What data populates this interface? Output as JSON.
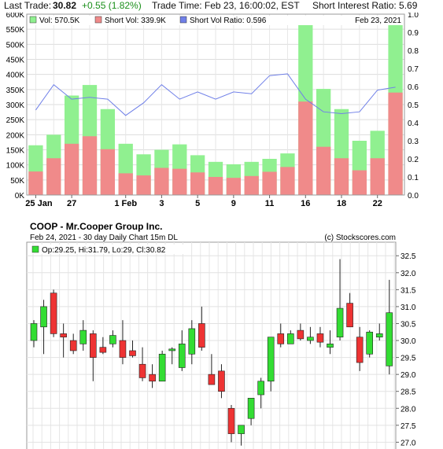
{
  "header": {
    "last_trade_label": "Last Trade:",
    "last_trade_price": "30.82",
    "change": "+0.55 (1.82%)",
    "trade_time": "Trade Time: Feb 23, 16:00:02, EST",
    "short_interest": "Short Interest Ratio: 5.69"
  },
  "colors": {
    "volume": "#90f090",
    "short_volume": "#f08a8a",
    "ratio_line": "#7080e8",
    "candle_up": "#33dd33",
    "candle_down": "#ee3333"
  },
  "chart_data": [
    {
      "type": "bar",
      "legend": {
        "vol": "Vol: 570.5K",
        "short_vol": "Short Vol: 339.9K",
        "ratio": "Short Vol Ratio: 0.596",
        "date": "Feb 23, 2021"
      },
      "x_tick_labels": [
        "25 Jan",
        "27",
        "1 Feb",
        "3",
        "5",
        "9",
        "11",
        "16",
        "18",
        "22"
      ],
      "y_left_ticks": [
        "0K",
        "50K",
        "100K",
        "150K",
        "200K",
        "250K",
        "300K",
        "350K",
        "400K",
        "450K",
        "500K",
        "550K",
        "600K"
      ],
      "y_right_ticks": [
        "0.0",
        "0.1",
        "0.2",
        "0.3",
        "0.4",
        "0.5",
        "0.6",
        "0.7",
        "0.8",
        "0.9",
        "1.0"
      ],
      "ylim_left": [
        0,
        600000
      ],
      "ylim_right": [
        0,
        1.0
      ],
      "categories": [
        "Jan 25",
        "Jan 26",
        "Jan 27",
        "Jan 28",
        "Jan 29",
        "Feb 1",
        "Feb 2",
        "Feb 3",
        "Feb 4",
        "Feb 5",
        "Feb 8",
        "Feb 9",
        "Feb 10",
        "Feb 11",
        "Feb 12",
        "Feb 16",
        "Feb 17",
        "Feb 18",
        "Feb 19",
        "Feb 22",
        "Feb 23"
      ],
      "tick_index": [
        0,
        2,
        5,
        7,
        9,
        11,
        13,
        15,
        17,
        19
      ],
      "volume": [
        165000,
        200000,
        330000,
        365000,
        285000,
        170000,
        135000,
        150000,
        168000,
        132000,
        110000,
        102000,
        110000,
        120000,
        138000,
        575000,
        352000,
        285000,
        180000,
        213000,
        570500
      ],
      "short_volume": [
        78000,
        122000,
        170000,
        195000,
        152000,
        72000,
        65000,
        90000,
        87000,
        75000,
        60000,
        57000,
        63000,
        77000,
        93000,
        310000,
        160000,
        122000,
        82000,
        122000,
        339900
      ],
      "short_ratio": [
        0.47,
        0.61,
        0.53,
        0.54,
        0.53,
        0.44,
        0.51,
        0.61,
        0.53,
        0.57,
        0.53,
        0.57,
        0.56,
        0.66,
        0.67,
        0.53,
        0.46,
        0.45,
        0.46,
        0.58,
        0.596
      ]
    },
    {
      "type": "candlestick",
      "title": "COOP - Mr.Cooper Group Inc.",
      "subtitle": "Feb 24, 2021 - 30 day  Daily Chart 15m DL",
      "credit": "(c) Stockscores.com",
      "legend": "Op:29.25, Hi:31.79, Lo:29, Cl:30.82",
      "y_ticks": [
        "27.0",
        "27.5",
        "28.0",
        "28.5",
        "29.0",
        "29.5",
        "30.0",
        "30.5",
        "31.0",
        "31.5",
        "32.0",
        "32.5"
      ],
      "ylim": [
        26.8,
        32.9
      ],
      "candles": [
        {
          "o": 30.0,
          "h": 30.6,
          "l": 29.8,
          "c": 30.5
        },
        {
          "o": 30.4,
          "h": 31.2,
          "l": 29.6,
          "c": 31.0
        },
        {
          "o": 31.4,
          "h": 31.5,
          "l": 30.1,
          "c": 30.2
        },
        {
          "o": 30.2,
          "h": 30.5,
          "l": 29.5,
          "c": 30.1
        },
        {
          "o": 30.0,
          "h": 30.2,
          "l": 29.6,
          "c": 29.7
        },
        {
          "o": 29.9,
          "h": 30.6,
          "l": 29.7,
          "c": 30.3
        },
        {
          "o": 30.2,
          "h": 30.3,
          "l": 28.8,
          "c": 29.5
        },
        {
          "o": 29.8,
          "h": 30.1,
          "l": 29.6,
          "c": 29.65
        },
        {
          "o": 29.9,
          "h": 30.3,
          "l": 29.8,
          "c": 30.15
        },
        {
          "o": 30.0,
          "h": 30.6,
          "l": 29.3,
          "c": 29.5
        },
        {
          "o": 29.7,
          "h": 30.0,
          "l": 29.5,
          "c": 29.55
        },
        {
          "o": 29.3,
          "h": 29.8,
          "l": 28.8,
          "c": 28.9
        },
        {
          "o": 29.0,
          "h": 29.3,
          "l": 28.6,
          "c": 28.8
        },
        {
          "o": 28.8,
          "h": 29.7,
          "l": 28.8,
          "c": 29.6
        },
        {
          "o": 29.7,
          "h": 29.8,
          "l": 29.3,
          "c": 29.75
        },
        {
          "o": 29.2,
          "h": 30.3,
          "l": 29.1,
          "c": 29.9
        },
        {
          "o": 29.6,
          "h": 30.6,
          "l": 29.3,
          "c": 30.35
        },
        {
          "o": 30.5,
          "h": 31.0,
          "l": 29.7,
          "c": 29.8
        },
        {
          "o": 29.0,
          "h": 29.6,
          "l": 28.7,
          "c": 28.7
        },
        {
          "o": 29.1,
          "h": 29.3,
          "l": 28.3,
          "c": 28.5
        },
        {
          "o": 28.0,
          "h": 28.1,
          "l": 27.0,
          "c": 27.25
        },
        {
          "o": 27.25,
          "h": 27.5,
          "l": 26.9,
          "c": 27.5
        },
        {
          "o": 27.7,
          "h": 28.3,
          "l": 27.5,
          "c": 28.3
        },
        {
          "o": 28.4,
          "h": 28.9,
          "l": 28.0,
          "c": 28.8
        },
        {
          "o": 28.8,
          "h": 30.1,
          "l": 28.5,
          "c": 30.1
        },
        {
          "o": 30.2,
          "h": 30.5,
          "l": 29.8,
          "c": 29.9
        },
        {
          "o": 29.9,
          "h": 30.3,
          "l": 29.9,
          "c": 30.2
        },
        {
          "o": 30.3,
          "h": 30.5,
          "l": 30.0,
          "c": 30.05
        },
        {
          "o": 30.0,
          "h": 30.4,
          "l": 29.9,
          "c": 30.1
        },
        {
          "o": 30.2,
          "h": 30.4,
          "l": 29.8,
          "c": 29.95
        },
        {
          "o": 29.8,
          "h": 30.3,
          "l": 29.6,
          "c": 29.9
        },
        {
          "o": 30.1,
          "h": 32.4,
          "l": 30.0,
          "c": 30.95
        },
        {
          "o": 31.1,
          "h": 31.4,
          "l": 30.4,
          "c": 30.4
        },
        {
          "o": 30.1,
          "h": 30.4,
          "l": 29.1,
          "c": 29.35
        },
        {
          "o": 29.6,
          "h": 30.3,
          "l": 29.5,
          "c": 30.25
        },
        {
          "o": 30.1,
          "h": 30.5,
          "l": 30.0,
          "c": 30.2
        },
        {
          "o": 29.25,
          "h": 31.79,
          "l": 29.0,
          "c": 30.82
        }
      ]
    }
  ]
}
